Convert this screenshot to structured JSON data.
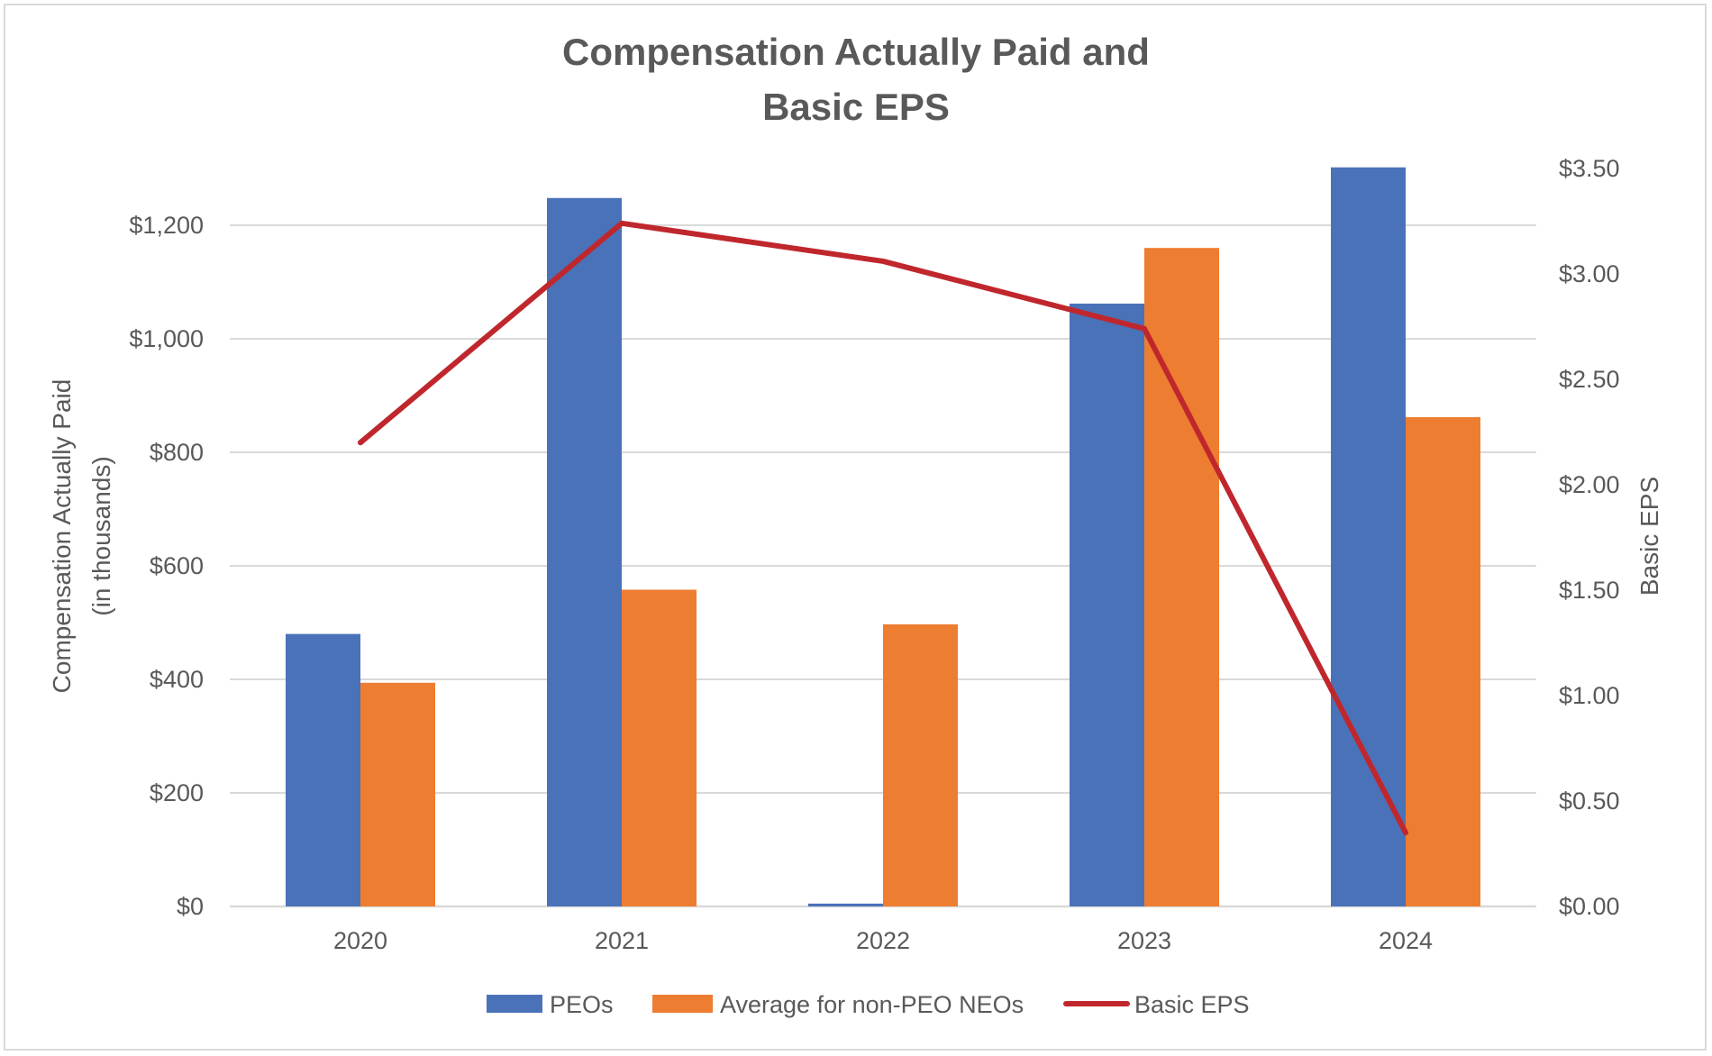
{
  "chart_data": {
    "type": "bar",
    "title": "Compensation Actually Paid and Basic EPS",
    "title_lines": [
      "Compensation Actually Paid and",
      "Basic EPS"
    ],
    "categories": [
      "2020",
      "2021",
      "2022",
      "2023",
      "2024"
    ],
    "series": [
      {
        "name": "PEOs",
        "type": "bar",
        "axis": "left",
        "color": "#4a72b8",
        "values": [
          480,
          1248,
          5,
          1062,
          1302
        ]
      },
      {
        "name": "Average for non-PEO NEOs",
        "type": "bar",
        "axis": "left",
        "color": "#ed7d31",
        "values": [
          394,
          558,
          497,
          1160,
          862
        ]
      },
      {
        "name": "Basic EPS",
        "type": "line",
        "axis": "right",
        "color": "#c0272d",
        "values": [
          2.2,
          3.24,
          3.06,
          2.74,
          0.35
        ]
      }
    ],
    "ylabel_lines": [
      "Compensation Actually Paid",
      "(in thousands)"
    ],
    "ylim": [
      0,
      1300
    ],
    "yticks": [
      0,
      200,
      400,
      600,
      800,
      1000,
      1200
    ],
    "ytick_labels": [
      "$0",
      "$200",
      "$400",
      "$600",
      "$800",
      "$1,000",
      "$1,200"
    ],
    "y2label": "Basic EPS",
    "y2lim": [
      0,
      3.5
    ],
    "y2ticks": [
      0,
      0.5,
      1,
      1.5,
      2,
      2.5,
      3,
      3.5
    ],
    "y2tick_labels": [
      "$0.00",
      "$0.50",
      "$1.00",
      "$1.50",
      "$2.00",
      "$2.50",
      "$3.00",
      "$3.50"
    ],
    "grid": true,
    "legend": "bottom",
    "colors": {
      "gridline": "#d9d9d9",
      "text": "#595959"
    }
  }
}
